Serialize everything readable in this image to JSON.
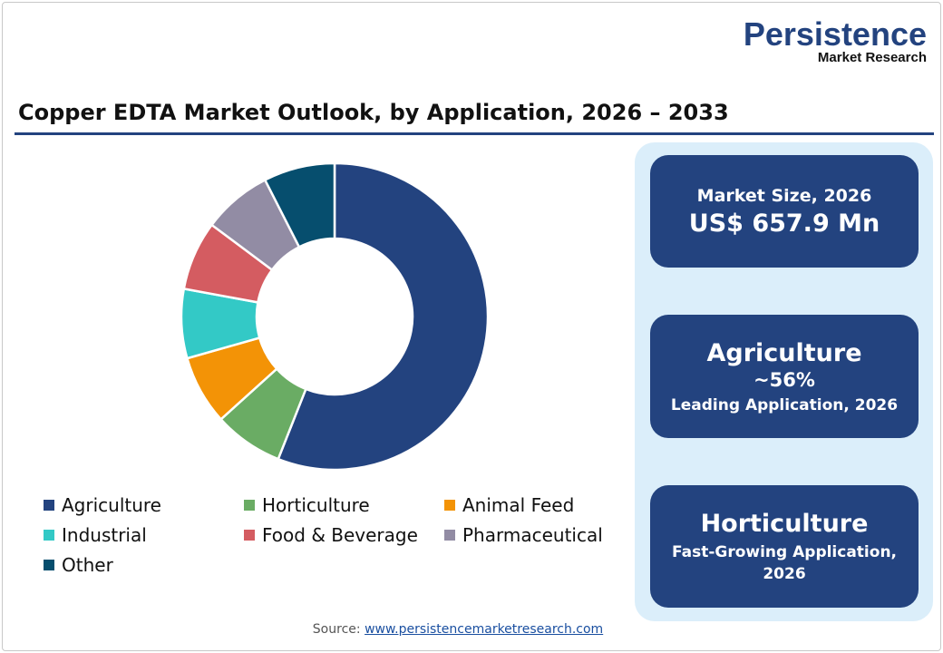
{
  "logo": {
    "line1": "Persistence",
    "line2": "Market Research"
  },
  "title": "Copper EDTA Market Outlook, by Application, 2026 – 2033",
  "chart_data": {
    "type": "pie",
    "donut": true,
    "title": "Copper EDTA Market Outlook, by Application, 2026 – 2033",
    "unit": "%",
    "categories": [
      "Agriculture",
      "Horticulture",
      "Animal Feed",
      "Industrial",
      "Food & Beverage",
      "Pharmaceutical",
      "Other"
    ],
    "values": [
      56,
      7.3,
      7.3,
      7.3,
      7.3,
      7.3,
      7.5
    ],
    "colors": [
      "#23437f",
      "#6aac64",
      "#f39306",
      "#33c9c6",
      "#d45c61",
      "#928ca4",
      "#064e6e"
    ],
    "start": "top",
    "direction": "clockwise",
    "legend_position": "bottom"
  },
  "cards": [
    {
      "line1": "Market Size, 2026",
      "line2": "US$ 657.9 Mn"
    },
    {
      "line1": "Agriculture",
      "line2": "~56%",
      "line3": "Leading Application, 2026"
    },
    {
      "line1": "Horticulture",
      "line2": "Fast-Growing Application,",
      "line3": "2026"
    }
  ],
  "source": {
    "label": "Source:",
    "link": "www.persistencemarketresearch.com"
  }
}
